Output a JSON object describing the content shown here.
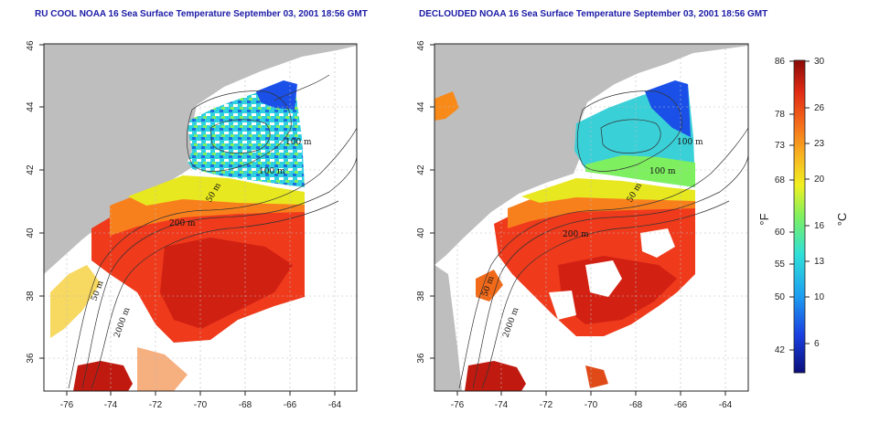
{
  "titles": {
    "left": "RU COOL NOAA 16 Sea Surface Temperature September 03, 2001 18:56 GMT",
    "right": "DECLOUDED NOAA 16 Sea Surface Temperature September 03, 2001 18:56 GMT"
  },
  "axes": {
    "lon_ticks": [
      "-76",
      "-74",
      "-72",
      "-70",
      "-68",
      "-66",
      "-64"
    ],
    "lat_ticks": [
      "36",
      "38",
      "40",
      "42",
      "44",
      "46"
    ]
  },
  "contours": {
    "m100": "100 m",
    "m50": "50 m",
    "m200": "200 m",
    "m2000": "2000 m"
  },
  "colorbar": {
    "fahrenheit_unit": "°F",
    "celsius_unit": "°C",
    "fahrenheit_ticks": [
      "86",
      "78",
      "73",
      "68",
      "60",
      "55",
      "50",
      "42"
    ],
    "celsius_ticks": [
      "30",
      "26",
      "23",
      "20",
      "16",
      "13",
      "10",
      "6"
    ]
  },
  "colors": {
    "land": "#bebebe",
    "no_data": "#ffffff",
    "title": "#1a1aa6"
  }
}
